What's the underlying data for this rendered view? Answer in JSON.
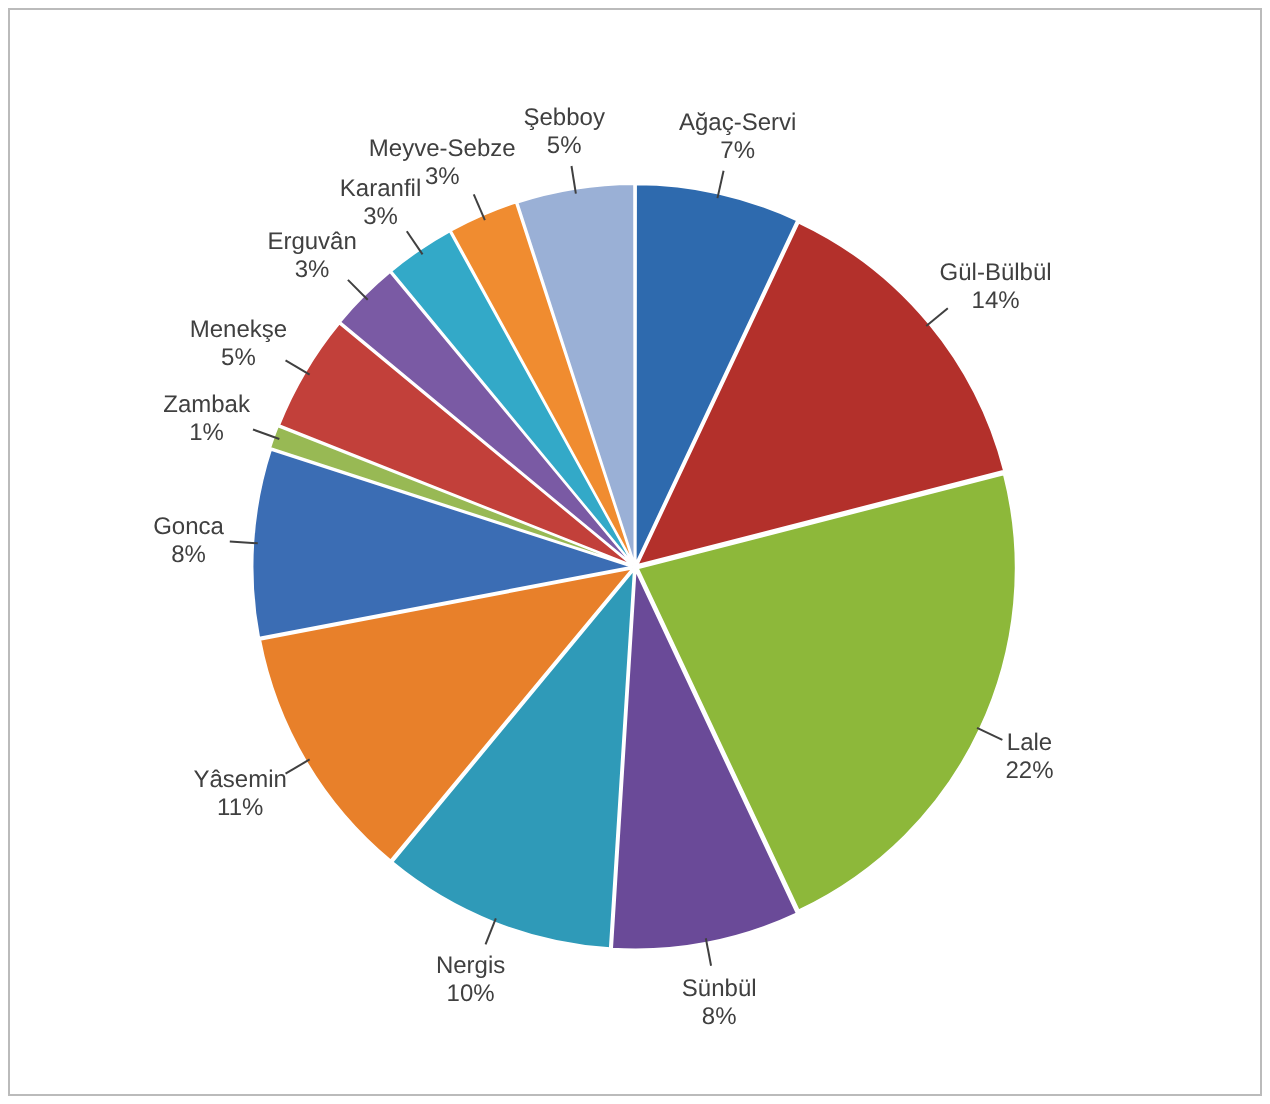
{
  "chart_data": {
    "type": "pie",
    "categories": [
      "Ağaç-Servi",
      "Gül-Bülbül",
      "Lale",
      "Sünbül",
      "Nergis",
      "Yâsemin",
      "Gonca",
      "Zambak",
      "Menekşe",
      "Erguvân",
      "Karanfil",
      "Meyve-Sebze",
      "Şebboy"
    ],
    "values": [
      7,
      14,
      22,
      8,
      10,
      11,
      8,
      1,
      5,
      3,
      3,
      3,
      5
    ],
    "colors": [
      "#2e6aae",
      "#b3302b",
      "#8db83a",
      "#6a4a98",
      "#2f9ab8",
      "#e8802a",
      "#3b6db4",
      "#98b954",
      "#c2403a",
      "#7a5aa4",
      "#33a9c8",
      "#f08c30",
      "#9ab0d6"
    ],
    "value_labels": [
      "7%",
      "14%",
      "22%",
      "8%",
      "10%",
      "11%",
      "8%",
      "1%",
      "5%",
      "3%",
      "3%",
      "3%",
      "5%"
    ],
    "legend": false
  }
}
